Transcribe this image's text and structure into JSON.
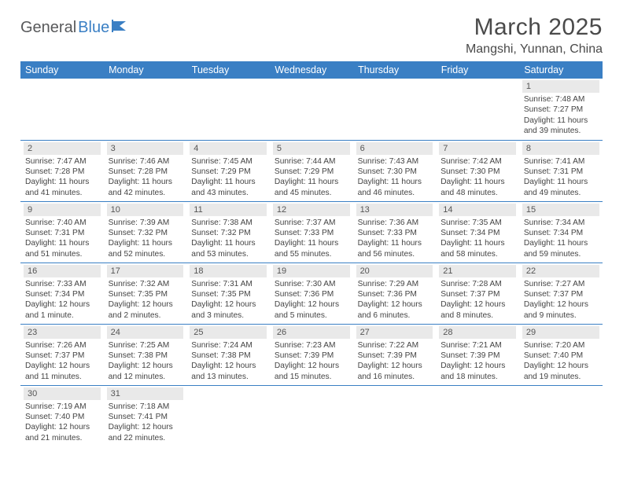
{
  "logo": {
    "text1": "General",
    "text2": "Blue"
  },
  "title": "March 2025",
  "location": "Mangshi, Yunnan, China",
  "colors": {
    "header_bg": "#3a7fc4",
    "header_text": "#ffffff",
    "daynum_bg": "#e9e9e9",
    "cell_border": "#3a7fc4",
    "body_text": "#444444",
    "title_text": "#4a4a4a"
  },
  "weekdays": [
    "Sunday",
    "Monday",
    "Tuesday",
    "Wednesday",
    "Thursday",
    "Friday",
    "Saturday"
  ],
  "weeks": [
    [
      null,
      null,
      null,
      null,
      null,
      null,
      {
        "n": "1",
        "sr": "7:48 AM",
        "ss": "7:27 PM",
        "dl": "11 hours and 39 minutes."
      }
    ],
    [
      {
        "n": "2",
        "sr": "7:47 AM",
        "ss": "7:28 PM",
        "dl": "11 hours and 41 minutes."
      },
      {
        "n": "3",
        "sr": "7:46 AM",
        "ss": "7:28 PM",
        "dl": "11 hours and 42 minutes."
      },
      {
        "n": "4",
        "sr": "7:45 AM",
        "ss": "7:29 PM",
        "dl": "11 hours and 43 minutes."
      },
      {
        "n": "5",
        "sr": "7:44 AM",
        "ss": "7:29 PM",
        "dl": "11 hours and 45 minutes."
      },
      {
        "n": "6",
        "sr": "7:43 AM",
        "ss": "7:30 PM",
        "dl": "11 hours and 46 minutes."
      },
      {
        "n": "7",
        "sr": "7:42 AM",
        "ss": "7:30 PM",
        "dl": "11 hours and 48 minutes."
      },
      {
        "n": "8",
        "sr": "7:41 AM",
        "ss": "7:31 PM",
        "dl": "11 hours and 49 minutes."
      }
    ],
    [
      {
        "n": "9",
        "sr": "7:40 AM",
        "ss": "7:31 PM",
        "dl": "11 hours and 51 minutes."
      },
      {
        "n": "10",
        "sr": "7:39 AM",
        "ss": "7:32 PM",
        "dl": "11 hours and 52 minutes."
      },
      {
        "n": "11",
        "sr": "7:38 AM",
        "ss": "7:32 PM",
        "dl": "11 hours and 53 minutes."
      },
      {
        "n": "12",
        "sr": "7:37 AM",
        "ss": "7:33 PM",
        "dl": "11 hours and 55 minutes."
      },
      {
        "n": "13",
        "sr": "7:36 AM",
        "ss": "7:33 PM",
        "dl": "11 hours and 56 minutes."
      },
      {
        "n": "14",
        "sr": "7:35 AM",
        "ss": "7:34 PM",
        "dl": "11 hours and 58 minutes."
      },
      {
        "n": "15",
        "sr": "7:34 AM",
        "ss": "7:34 PM",
        "dl": "11 hours and 59 minutes."
      }
    ],
    [
      {
        "n": "16",
        "sr": "7:33 AM",
        "ss": "7:34 PM",
        "dl": "12 hours and 1 minute."
      },
      {
        "n": "17",
        "sr": "7:32 AM",
        "ss": "7:35 PM",
        "dl": "12 hours and 2 minutes."
      },
      {
        "n": "18",
        "sr": "7:31 AM",
        "ss": "7:35 PM",
        "dl": "12 hours and 3 minutes."
      },
      {
        "n": "19",
        "sr": "7:30 AM",
        "ss": "7:36 PM",
        "dl": "12 hours and 5 minutes."
      },
      {
        "n": "20",
        "sr": "7:29 AM",
        "ss": "7:36 PM",
        "dl": "12 hours and 6 minutes."
      },
      {
        "n": "21",
        "sr": "7:28 AM",
        "ss": "7:37 PM",
        "dl": "12 hours and 8 minutes."
      },
      {
        "n": "22",
        "sr": "7:27 AM",
        "ss": "7:37 PM",
        "dl": "12 hours and 9 minutes."
      }
    ],
    [
      {
        "n": "23",
        "sr": "7:26 AM",
        "ss": "7:37 PM",
        "dl": "12 hours and 11 minutes."
      },
      {
        "n": "24",
        "sr": "7:25 AM",
        "ss": "7:38 PM",
        "dl": "12 hours and 12 minutes."
      },
      {
        "n": "25",
        "sr": "7:24 AM",
        "ss": "7:38 PM",
        "dl": "12 hours and 13 minutes."
      },
      {
        "n": "26",
        "sr": "7:23 AM",
        "ss": "7:39 PM",
        "dl": "12 hours and 15 minutes."
      },
      {
        "n": "27",
        "sr": "7:22 AM",
        "ss": "7:39 PM",
        "dl": "12 hours and 16 minutes."
      },
      {
        "n": "28",
        "sr": "7:21 AM",
        "ss": "7:39 PM",
        "dl": "12 hours and 18 minutes."
      },
      {
        "n": "29",
        "sr": "7:20 AM",
        "ss": "7:40 PM",
        "dl": "12 hours and 19 minutes."
      }
    ],
    [
      {
        "n": "30",
        "sr": "7:19 AM",
        "ss": "7:40 PM",
        "dl": "12 hours and 21 minutes."
      },
      {
        "n": "31",
        "sr": "7:18 AM",
        "ss": "7:41 PM",
        "dl": "12 hours and 22 minutes."
      },
      null,
      null,
      null,
      null,
      null
    ]
  ],
  "labels": {
    "sunrise": "Sunrise: ",
    "sunset": "Sunset: ",
    "daylight": "Daylight: "
  }
}
